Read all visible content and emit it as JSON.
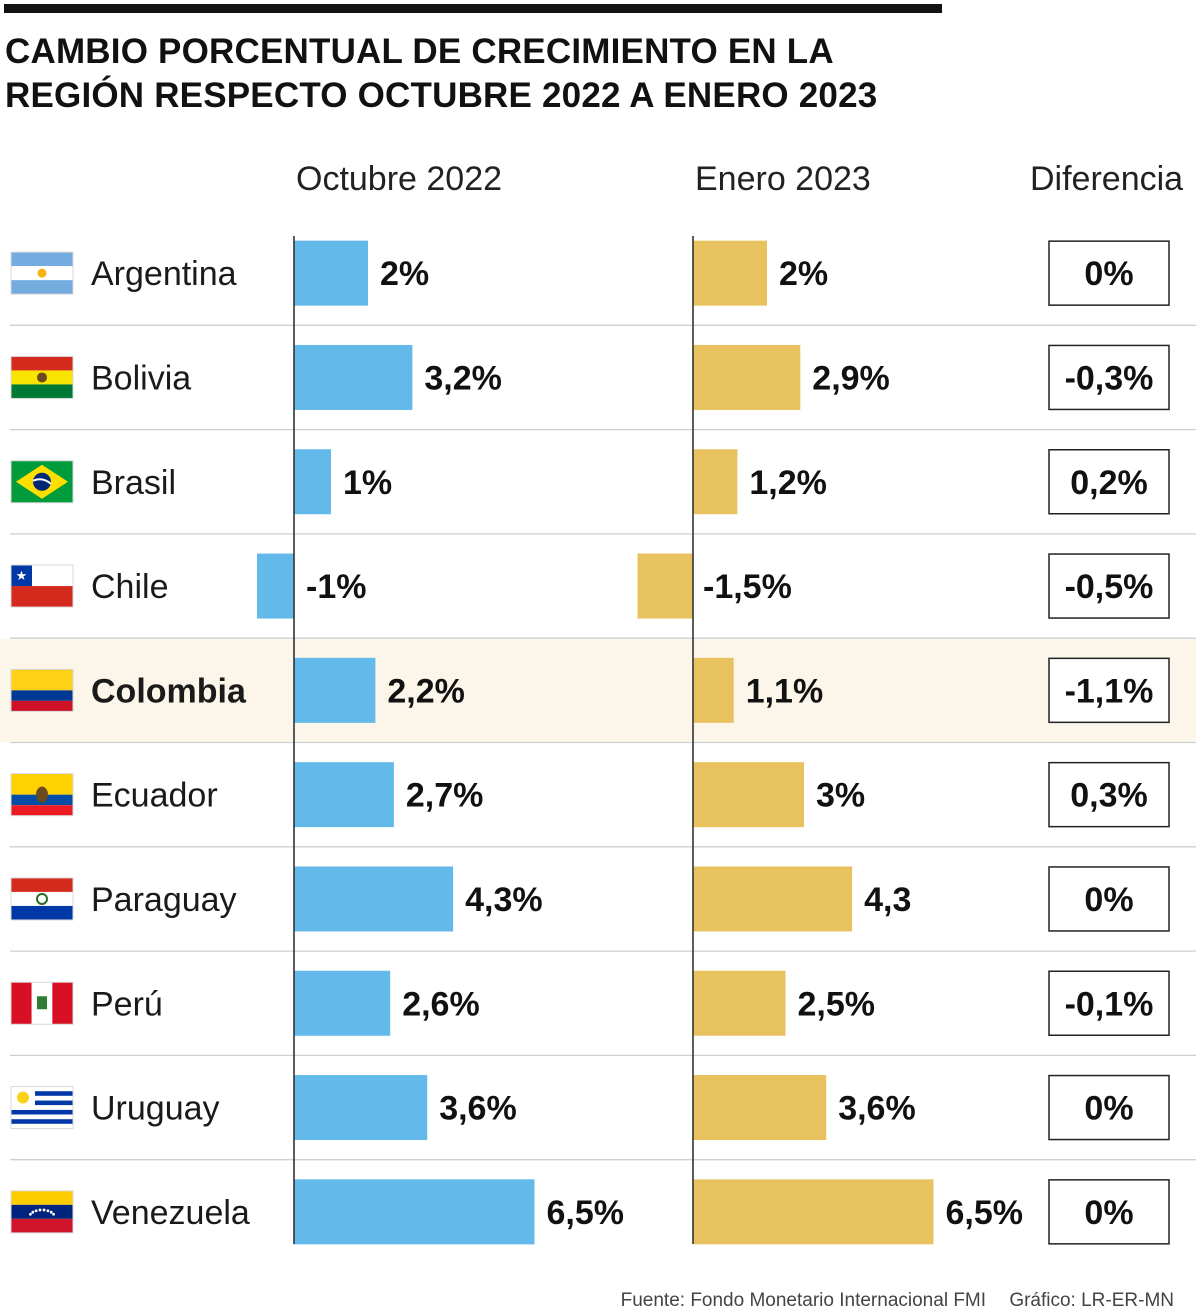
{
  "title_lines": [
    "CAMBIO PORCENTUAL DE CRECIMIENTO EN LA",
    "REGIÓN RESPECTO OCTUBRE 2022 A ENERO 2023"
  ],
  "columns": {
    "october": "Octubre 2022",
    "january": "Enero 2023",
    "difference": "Diferencia"
  },
  "footer": {
    "source": "Fuente: Fondo Monetario Internacional FMI",
    "credit": "Gráfico: LR-ER-MN"
  },
  "colors": {
    "october_bar": "#63b9e9",
    "january_bar": "#e8c25e",
    "highlight_row": "#fcf6ea",
    "separator": "#cfcfcf",
    "axis": "#333333"
  },
  "chart_data": {
    "type": "bar",
    "orientation": "horizontal",
    "categories": [
      "Argentina",
      "Bolivia",
      "Brasil",
      "Chile",
      "Colombia",
      "Ecuador",
      "Paraguay",
      "Perú",
      "Uruguay",
      "Venezuela"
    ],
    "highlighted": "Colombia",
    "series": [
      {
        "name": "Octubre 2022",
        "values": [
          2,
          3.2,
          1,
          -1,
          2.2,
          2.7,
          4.3,
          2.6,
          3.6,
          6.5
        ],
        "labels": [
          "2%",
          "3,2%",
          "1%",
          "-1%",
          "2,2%",
          "2,7%",
          "4,3%",
          "2,6%",
          "3,6%",
          "6,5%"
        ]
      },
      {
        "name": "Enero 2023",
        "values": [
          2,
          2.9,
          1.2,
          -1.5,
          1.1,
          3,
          4.3,
          2.5,
          3.6,
          6.5
        ],
        "labels": [
          "2%",
          "2,9%",
          "1,2%",
          "-1,5%",
          "1,1%",
          "3%",
          "4,3",
          "2,5%",
          "3,6%",
          "6,5%"
        ]
      },
      {
        "name": "Diferencia",
        "values": [
          0,
          -0.3,
          0.2,
          -0.5,
          -1.1,
          0.3,
          0,
          -0.1,
          0,
          0
        ],
        "labels": [
          "0%",
          "-0,3%",
          "0,2%",
          "-0,5%",
          "-1,1%",
          "0,3%",
          "0%",
          "-0,1%",
          "0%",
          "0%"
        ]
      }
    ],
    "unit": "%"
  }
}
